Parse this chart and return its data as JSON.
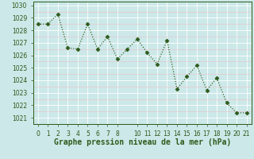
{
  "x": [
    0,
    1,
    2,
    3,
    4,
    5,
    6,
    7,
    8,
    9,
    10,
    11,
    12,
    13,
    14,
    15,
    16,
    17,
    18,
    19,
    20,
    21
  ],
  "y": [
    1028.5,
    1028.5,
    1029.3,
    1026.6,
    1026.5,
    1028.5,
    1026.5,
    1027.5,
    1025.7,
    1026.5,
    1027.3,
    1026.2,
    1025.3,
    1027.2,
    1023.3,
    1024.3,
    1025.2,
    1023.2,
    1024.2,
    1022.2,
    1021.4,
    1021.4
  ],
  "xlabel": "Graphe pression niveau de la mer (hPa)",
  "ylim": [
    1020.5,
    1030.3
  ],
  "xlim": [
    -0.5,
    21.5
  ],
  "yticks": [
    1021,
    1022,
    1023,
    1024,
    1025,
    1026,
    1027,
    1028,
    1029,
    1030
  ],
  "xticks": [
    0,
    1,
    2,
    3,
    4,
    5,
    6,
    7,
    8,
    10,
    11,
    12,
    13,
    14,
    15,
    16,
    17,
    18,
    19,
    20,
    21
  ],
  "line_color": "#2d5a1b",
  "marker": "D",
  "marker_size": 2.5,
  "bg_color": "#cce8e8",
  "grid_color_major": "#ffffff",
  "grid_color_minor": "#e8c8d0",
  "xlabel_fontsize": 7,
  "tick_fontsize": 5.5,
  "linewidth": 0.85
}
